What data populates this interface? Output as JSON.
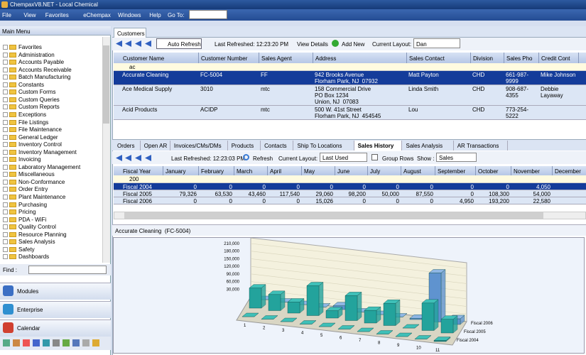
{
  "title_bar": "ChempaxV8.NET - Local Chemical",
  "menu": [
    "File",
    "View",
    "Favorites",
    "eChempax",
    "Windows",
    "Help"
  ],
  "goto_label": "Go To:",
  "main_menu": {
    "title": "Main Menu",
    "items": [
      "Favorites",
      "Administration",
      "Accounts Payable",
      "Accounts Receivable",
      "Batch Manufacturing",
      "Constants",
      "Custom Forms",
      "Custom Queries",
      "Custom Reports",
      "Exceptions",
      "File Listings",
      "File Maintenance",
      "General Ledger",
      "Inventory Control",
      "Inventory Management",
      "Invoicing",
      "Laboratory Management",
      "Miscellaneous",
      "Non-Conformance",
      "Order Entry",
      "Plant Maintenance",
      "Purchasing",
      "Pricing",
      "PDA - WiFi",
      "Quality Control",
      "Resource Planning",
      "Sales Analysis",
      "Safety",
      "Dashboards"
    ],
    "find_label": "Find :",
    "buttons": [
      "Modules",
      "Enterprise",
      "Calendar"
    ]
  },
  "customers": {
    "tab": "Customers",
    "auto_refresh": "Auto Refresh",
    "last_refreshed": "Last Refreshed: 12:23:20 PM",
    "view_details": "View Details",
    "add_new": "Add New",
    "layout_label": "Current Layout:",
    "layout": "Dan",
    "columns": [
      "Customer Name",
      "Customer Number",
      "Sales Agent",
      "Address",
      "Sales Contact",
      "Division",
      "Sales Pho",
      "Credit Cont"
    ],
    "filter": "ac",
    "rows": [
      [
        "Accurate Cleaning",
        "FC-5004",
        "FF",
        "942 Brooks Avenue\nFlorham Park, NJ  07932",
        "Matt Payton",
        "CHD",
        "661-987-\n9999",
        "Mike Johnson"
      ],
      [
        "Ace Medical Supply",
        "3010",
        "mtc",
        "158 Commercial Drive\nPO Box 1234\nUnion, NJ  07083",
        "Linda Smith",
        "CHD",
        "908-687-\n4355",
        "Debbie\nLayaway"
      ],
      [
        "Acid Products",
        "ACIDP",
        "mtc",
        "500 W. 41st Street\nFlorham Park, NJ  454545",
        "Lou",
        "CHD",
        "773-254-\n5222"
      ]
    ]
  },
  "detail": {
    "tabs": [
      "Orders",
      "Open AR",
      "Invoices/CMs/DMs",
      "Products",
      "Contacts",
      "Ship To Locations",
      "Sales History",
      "Sales Analysis",
      "AR Transactions"
    ],
    "active_tab": 6,
    "last_refreshed": "Last Refreshed: 12:23:03 PM",
    "refresh": "Refresh",
    "layout_label": "Current Layout:",
    "layout": "Last Used",
    "group_rows": "Group Rows",
    "show_label": "Show :",
    "show": "Sales",
    "columns": [
      "Fiscal Year",
      "January",
      "February",
      "March",
      "April",
      "May",
      "June",
      "July",
      "August",
      "September",
      "October",
      "November",
      "December"
    ],
    "filter": "200",
    "rows": [
      [
        "Fiscal 2004",
        "0",
        "0",
        "0",
        "0",
        "0",
        "0",
        "0",
        "0",
        "0",
        "0",
        "4,050"
      ],
      [
        "Fiscal 2005",
        "79,326",
        "63,530",
        "43,460",
        "117,540",
        "29,060",
        "98,200",
        "50,000",
        "87,550",
        "0",
        "108,300",
        "54,000"
      ],
      [
        "Fiscal 2006",
        "0",
        "0",
        "0",
        "0",
        "15,026",
        "0",
        "0",
        "0",
        "4,950",
        "193,200",
        "22,580"
      ]
    ]
  },
  "chart_caption": "Accurate Cleaning  (FC-5004)",
  "chart_data": {
    "type": "bar3d",
    "x": [
      1,
      2,
      3,
      4,
      5,
      6,
      7,
      8,
      9,
      10,
      11
    ],
    "series": [
      {
        "name": "Fiscal 2004",
        "color": "#1d8a86",
        "values": [
          0,
          0,
          0,
          0,
          0,
          0,
          0,
          0,
          0,
          0,
          4050
        ]
      },
      {
        "name": "Fiscal 2005",
        "color": "#23a39c",
        "values": [
          79326,
          63530,
          43460,
          117540,
          29060,
          98200,
          50000,
          87550,
          0,
          108300,
          54000
        ]
      },
      {
        "name": "Fiscal 2006",
        "color": "#5f93cf",
        "values": [
          0,
          0,
          0,
          0,
          15026,
          0,
          0,
          0,
          4950,
          193200,
          22580
        ]
      }
    ],
    "ylim": [
      0,
      210000
    ],
    "yticks": [
      {
        "value": 30000,
        "label": "30,000"
      },
      {
        "value": 60000,
        "label": "60,000"
      },
      {
        "value": 90000,
        "label": "90,000"
      },
      {
        "value": 120000,
        "label": "120,000"
      },
      {
        "value": 150000,
        "label": "150,000"
      },
      {
        "value": 180000,
        "label": "180,000"
      },
      {
        "value": 210000,
        "label": "210,000"
      }
    ]
  }
}
